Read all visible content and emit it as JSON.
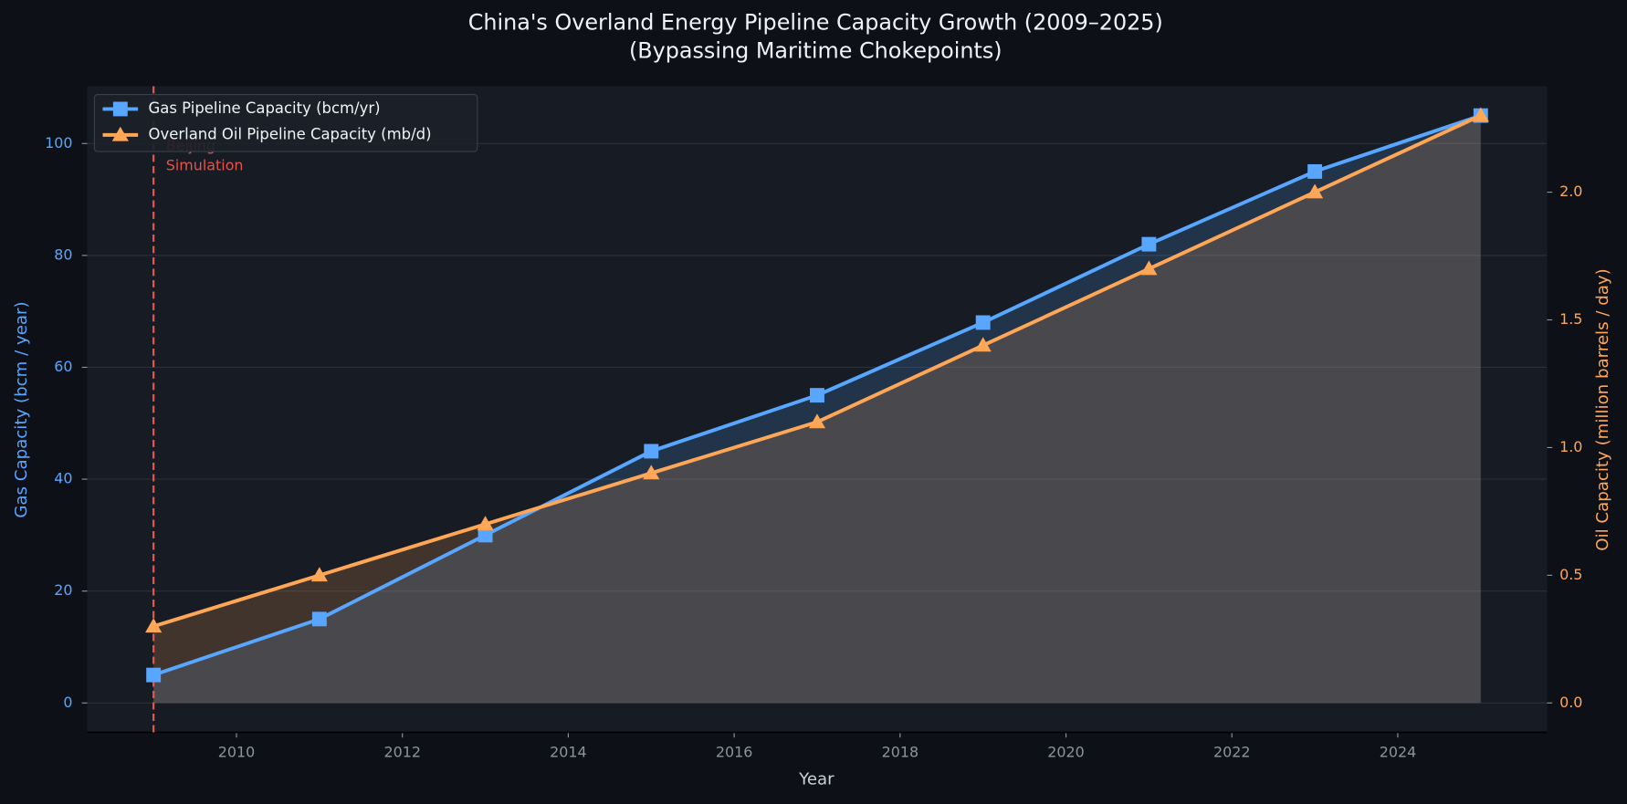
{
  "chart_data": {
    "type": "line",
    "title": "China's Overland Energy Pipeline Capacity Growth (2009–2025)",
    "subtitle": "(Bypassing Maritime Chokepoints)",
    "x_label": "Year",
    "y_label": "Gas Capacity (bcm / year)",
    "y2_label": "Oil Capacity (million barrels / day)",
    "x": [
      2009,
      2011,
      2013,
      2015,
      2017,
      2019,
      2021,
      2023,
      2025
    ],
    "series": [
      {
        "name": "Gas Pipeline Capacity (bcm/yr)",
        "color": "#58a6ff",
        "marker": "square",
        "axis": "y",
        "values": [
          5,
          15,
          30,
          45,
          55,
          68,
          82,
          95,
          105
        ]
      },
      {
        "name": "Overland Oil Pipeline Capacity (mb/d)",
        "color": "#ffa657",
        "marker": "triangle",
        "axis": "y2",
        "values": [
          0.3,
          0.5,
          0.7,
          0.9,
          1.1,
          1.4,
          1.7,
          2.0,
          2.3
        ]
      }
    ],
    "xlim": [
      2008.2,
      2025.8
    ],
    "xticks": [
      2010,
      2012,
      2014,
      2016,
      2018,
      2020,
      2022,
      2024
    ],
    "ylim": [
      -5.25,
      110.25
    ],
    "yticks": [
      0,
      20,
      40,
      60,
      80,
      100
    ],
    "y2lim": [
      -0.115,
      2.415
    ],
    "y2ticks": [
      {
        "value": 0,
        "label": "0.0"
      },
      0.5,
      {
        "value": 1,
        "label": "1.0"
      },
      1.5,
      {
        "value": 2,
        "label": "2.0"
      }
    ],
    "grid": true,
    "fill": true,
    "legend": "upper left",
    "annotation": {
      "x": 2009,
      "lines": [
        "Beijing",
        "Simulation"
      ],
      "color": "#e5534b"
    }
  }
}
